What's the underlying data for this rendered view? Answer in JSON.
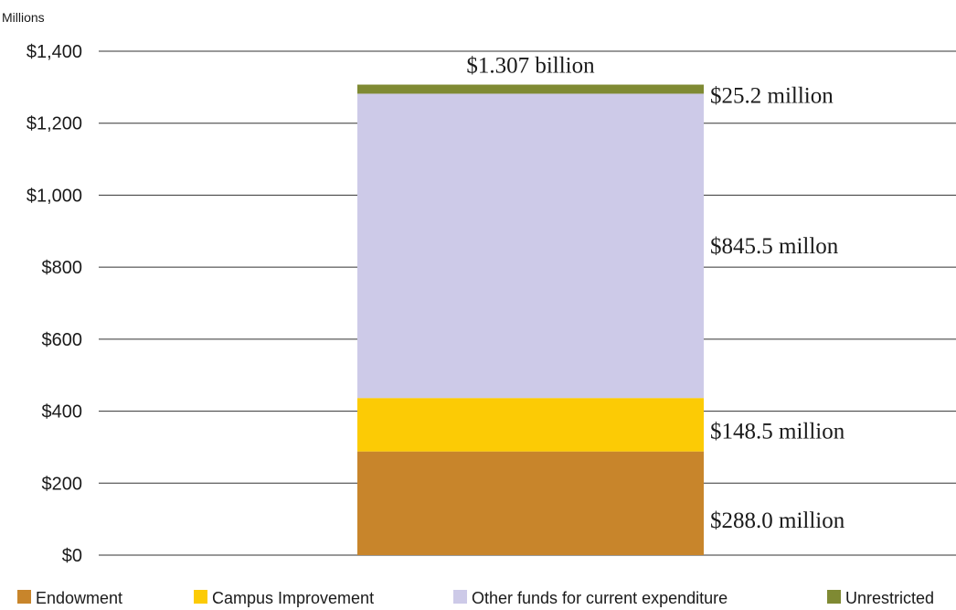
{
  "chart_data": {
    "type": "bar",
    "stacked": true,
    "unit_label": "Millions",
    "ylim": [
      0,
      1400
    ],
    "yticks": [
      {
        "value": 0,
        "label": "$0"
      },
      {
        "value": 200,
        "label": "$200"
      },
      {
        "value": 400,
        "label": "$400"
      },
      {
        "value": 600,
        "label": "$600"
      },
      {
        "value": 800,
        "label": "$800"
      },
      {
        "value": 1000,
        "label": "$1,000"
      },
      {
        "value": 1200,
        "label": "$1,200"
      },
      {
        "value": 1400,
        "label": "$1,400"
      }
    ],
    "grid": true,
    "legend_position": "bottom",
    "total_label": "$1.307 billion",
    "series": [
      {
        "name": "Endowment",
        "value": 288.0,
        "label": "$288.0 million",
        "color": "#c8852b"
      },
      {
        "name": "Campus Improvement",
        "value": 148.5,
        "label": "$148.5 million",
        "color": "#fccb05"
      },
      {
        "name": "Other funds for current expenditure",
        "value": 845.5,
        "label": "$845.5 millon",
        "color": "#cdcae8"
      },
      {
        "name": "Unrestricted",
        "value": 25.2,
        "label": "$25.2 million",
        "color": "#7f8a33"
      }
    ]
  }
}
